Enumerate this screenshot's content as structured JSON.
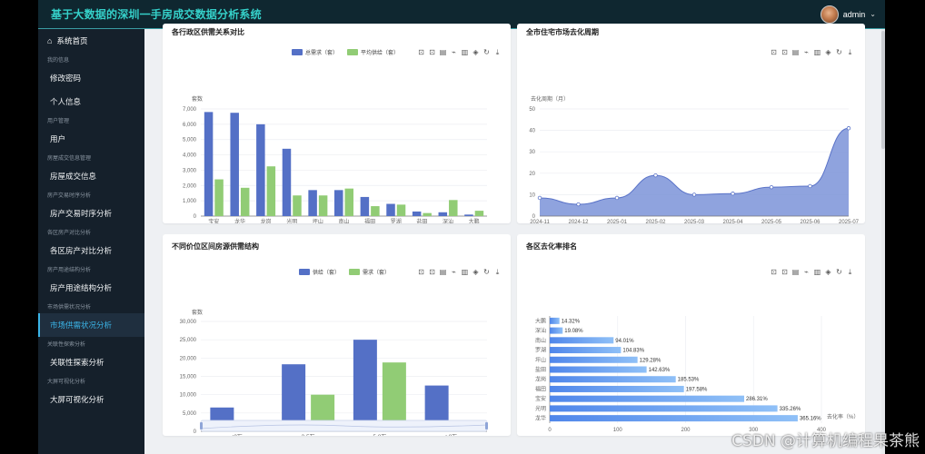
{
  "app": {
    "title": "基于大数据的深圳一手房成交数据分析系统",
    "username": "admin"
  },
  "sidebar": {
    "home": "系统首页",
    "groups": [
      {
        "label": "我的信息",
        "items": [
          "修改密码",
          "个人信息"
        ]
      },
      {
        "label": "用户管理",
        "items": [
          "用户"
        ]
      },
      {
        "label": "房屋成交信息管理",
        "items": [
          "房屋成交信息"
        ]
      },
      {
        "label": "房产交易时序分析",
        "items": [
          "房产交易时序分析"
        ]
      },
      {
        "label": "各区房产对比分析",
        "items": [
          "各区房产对比分析"
        ]
      },
      {
        "label": "房产用途结构分析",
        "items": [
          "房产用途结构分析"
        ]
      },
      {
        "label": "市场供需状况分析",
        "items": [
          "市场供需状况分析"
        ]
      },
      {
        "label": "关联性探索分析",
        "items": [
          "关联性探索分析"
        ]
      },
      {
        "label": "大屏可视化分析",
        "items": [
          "大屏可视化分析"
        ]
      }
    ],
    "active": "市场供需状况分析"
  },
  "toolbox_icons": [
    "⊡",
    "⊡",
    "▤",
    "⌁",
    "▥",
    "◈",
    "↻",
    "⤓"
  ],
  "colors": {
    "blue": "#5470c6",
    "green": "#91cc75",
    "area": "#7b93d8",
    "hbar": "#5b9cf0"
  },
  "cards": {
    "c1_title": "各行政区供需关系对比",
    "c2_title": "全市住宅市场去化周期",
    "c3_title": "不同价位区间房源供需结构",
    "c4_title": "各区去化率排名"
  },
  "chart_data": [
    {
      "type": "bar",
      "title": "各行政区供需关系对比",
      "ylabel": "套数",
      "categories": [
        "宝安",
        "龙华",
        "龙岗",
        "光明",
        "坪山",
        "南山",
        "福田",
        "罗湖",
        "盐田",
        "深汕",
        "大鹏"
      ],
      "series": [
        {
          "name": "总需求（套）",
          "values": [
            6800,
            6750,
            6000,
            4400,
            1700,
            1700,
            1250,
            800,
            300,
            250,
            100
          ]
        },
        {
          "name": "平均供给（套）",
          "values": [
            2400,
            1850,
            3250,
            1350,
            1350,
            1800,
            650,
            750,
            200,
            1050,
            350
          ]
        }
      ],
      "ylim": [
        0,
        7000
      ],
      "yticks": [
        "0",
        "1,000",
        "2,000",
        "3,000",
        "4,000",
        "5,000",
        "6,000",
        "7,000"
      ]
    },
    {
      "type": "area",
      "title": "全市住宅市场去化周期",
      "ylabel": "去化周期（月）",
      "x": [
        "2024-11",
        "2024-12",
        "2025-01",
        "2025-02",
        "2025-03",
        "2025-04",
        "2025-05",
        "2025-06",
        "2025-07"
      ],
      "values": [
        8.5,
        5.5,
        8.5,
        19,
        10,
        10.5,
        13.5,
        14,
        41
      ],
      "ylim": [
        0,
        50
      ],
      "yticks": [
        "0",
        "10",
        "20",
        "30",
        "40",
        "50"
      ]
    },
    {
      "type": "bar",
      "title": "不同价位区间房源供需结构",
      "ylabel": "套数",
      "categories": [
        "<3万",
        "3-5万",
        "5-8万",
        ">8万"
      ],
      "series": [
        {
          "name": "供给（套）",
          "values": [
            6500,
            18300,
            25000,
            12500
          ]
        },
        {
          "name": "需求（套）",
          "values": [
            1200,
            10000,
            18800,
            0
          ]
        }
      ],
      "ylim": [
        0,
        30000
      ],
      "yticks": [
        "0",
        "5,000",
        "10,000",
        "15,000",
        "20,000",
        "25,000",
        "30,000"
      ]
    },
    {
      "type": "bar",
      "title": "各区去化率排名",
      "xlabel": "去化率（%）",
      "categories": [
        "大鹏",
        "深汕",
        "南山",
        "罗湖",
        "坪山",
        "盐田",
        "龙岗",
        "福田",
        "宝安",
        "光明",
        "龙华"
      ],
      "values": [
        14.32,
        19.08,
        94.01,
        104.83,
        129.28,
        142.63,
        185.53,
        197.58,
        286.31,
        335.26,
        365.16
      ],
      "labels": [
        "14.32%",
        "19.08%",
        "94.01%",
        "104.83%",
        "129.28%",
        "142.63%",
        "185.53%",
        "197.58%",
        "286.31%",
        "335.26%",
        "365.16%"
      ],
      "xlim": [
        0,
        400
      ],
      "xticks": [
        "0",
        "100",
        "200",
        "300",
        "400"
      ]
    }
  ],
  "watermark": "CSDN @计算机编程果茶熊"
}
